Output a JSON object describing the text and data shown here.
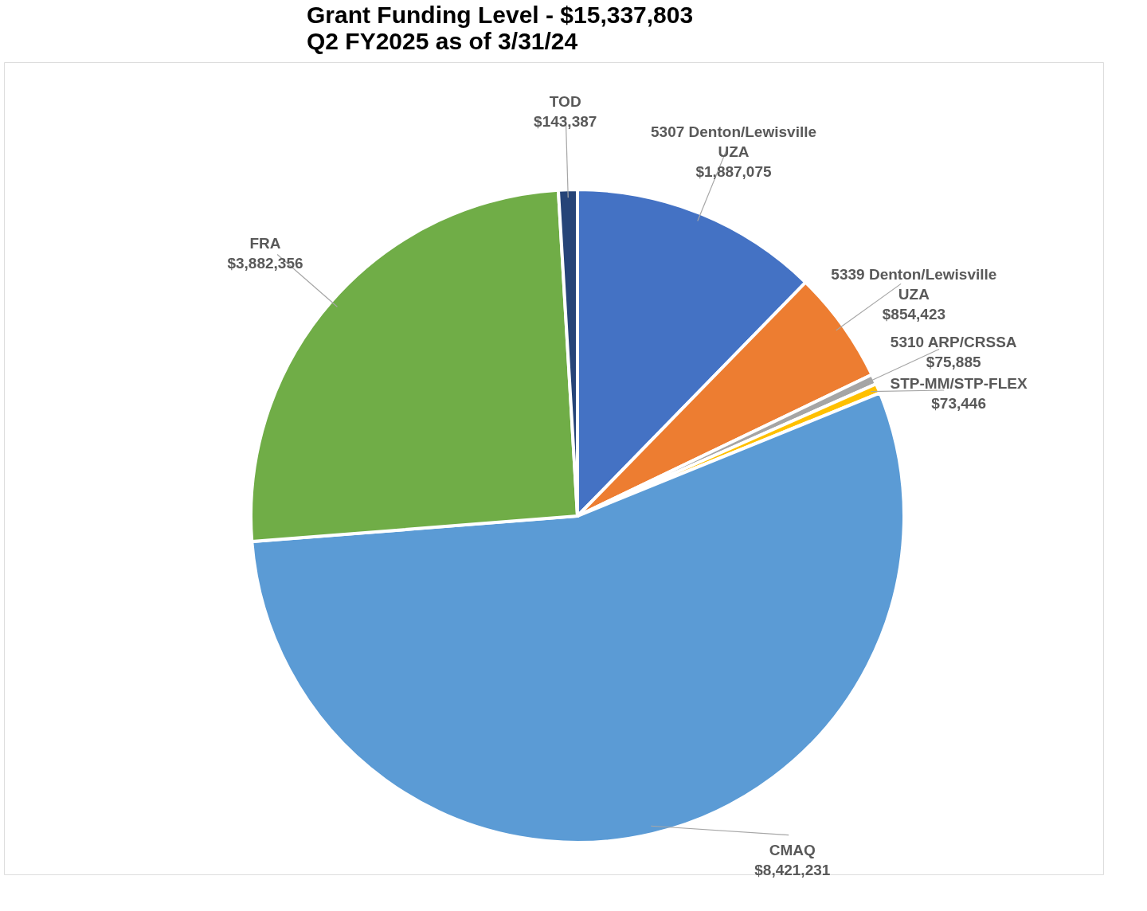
{
  "chart_data": {
    "type": "pie",
    "title": "Grant Funding Level - $15,337,803",
    "subtitle": "Q2 FY2025 as of 3/31/24",
    "categories": [
      "5307 Denton/Lewisville UZA",
      "5339 Denton/Lewisville UZA",
      "5310 ARP/CRSSA",
      "STP-MM/STP-FLEX",
      "CMAQ",
      "FRA",
      "TOD"
    ],
    "values": [
      1887075,
      854423,
      75885,
      73446,
      8421231,
      3882356,
      143387
    ],
    "value_labels": [
      "$1,887,075",
      "$854,423",
      "$75,885",
      "$73,446",
      "$8,421,231",
      "$3,882,356",
      "$143,387"
    ],
    "colors": [
      "#4472c4",
      "#ed7d31",
      "#a5a5a5",
      "#ffc000",
      "#5b9bd5",
      "#70ad47",
      "#264478"
    ],
    "legend": false
  }
}
